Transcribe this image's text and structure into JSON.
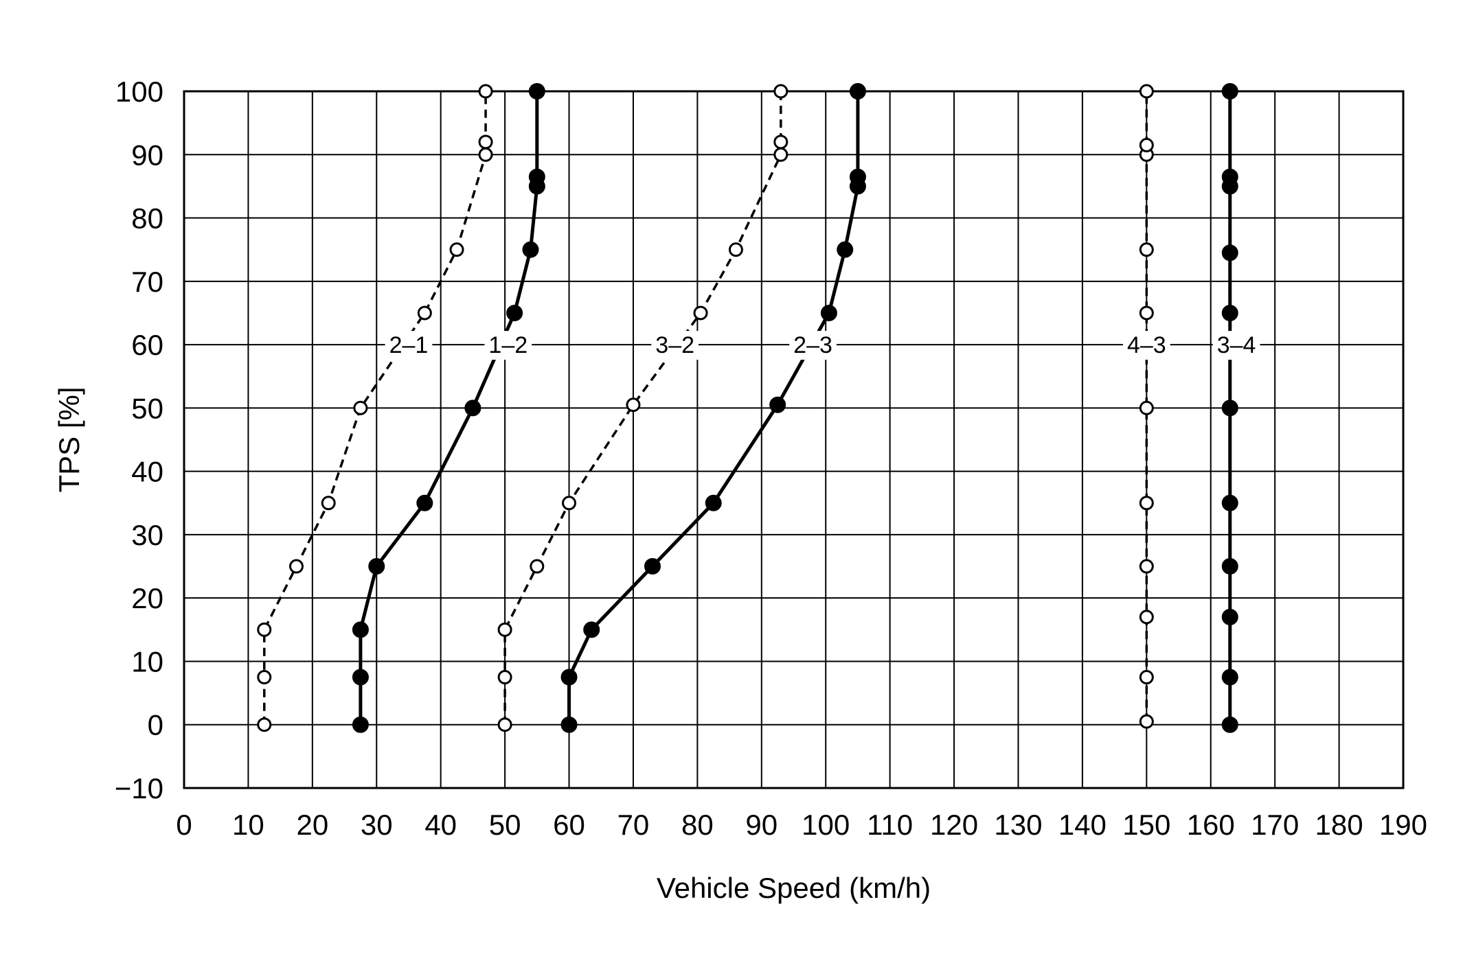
{
  "chart_data": {
    "type": "line",
    "xlabel": "Vehicle Speed (km/h)",
    "ylabel": "TPS [%]",
    "xlim": [
      0,
      190
    ],
    "ylim": [
      -10,
      100
    ],
    "xticks": [
      "0",
      "10",
      "20",
      "30",
      "40",
      "50",
      "60",
      "70",
      "80",
      "90",
      "100",
      "110",
      "120",
      "130",
      "140",
      "150",
      "160",
      "170",
      "180",
      "190"
    ],
    "yticks": [
      "−10",
      "0",
      "10",
      "20",
      "30",
      "40",
      "50",
      "60",
      "70",
      "80",
      "90",
      "100"
    ],
    "grid": true,
    "legend": "inline labels at TPS 60",
    "colors": {
      "line": "#000000",
      "grid": "#000000",
      "open_marker_fill": "#ffffff",
      "filled_marker_fill": "#000000"
    },
    "series": [
      {
        "name": "2–1",
        "style": "dashed",
        "marker": "open",
        "points": [
          [
            12.5,
            0
          ],
          [
            12.5,
            7.5
          ],
          [
            12.5,
            15
          ],
          [
            17.5,
            25
          ],
          [
            22.5,
            35
          ],
          [
            27.5,
            50
          ],
          [
            37.5,
            65
          ],
          [
            42.5,
            75
          ],
          [
            47,
            90
          ],
          [
            47,
            92
          ],
          [
            47,
            100
          ]
        ]
      },
      {
        "name": "1–2",
        "style": "solid",
        "marker": "filled",
        "points": [
          [
            27.5,
            0
          ],
          [
            27.5,
            7.5
          ],
          [
            27.5,
            15
          ],
          [
            30,
            25
          ],
          [
            37.5,
            35
          ],
          [
            45,
            50
          ],
          [
            51.5,
            65
          ],
          [
            54,
            75
          ],
          [
            55,
            85
          ],
          [
            55,
            86.5
          ],
          [
            55,
            100
          ]
        ]
      },
      {
        "name": "3–2",
        "style": "dashed",
        "marker": "open",
        "points": [
          [
            50,
            0
          ],
          [
            50,
            7.5
          ],
          [
            50,
            15
          ],
          [
            55,
            25
          ],
          [
            60,
            35
          ],
          [
            70,
            50.5
          ],
          [
            80.5,
            65
          ],
          [
            86,
            75
          ],
          [
            93,
            90
          ],
          [
            93,
            92
          ],
          [
            93,
            100
          ]
        ]
      },
      {
        "name": "2–3",
        "style": "solid",
        "marker": "filled",
        "points": [
          [
            60,
            0
          ],
          [
            60,
            7.5
          ],
          [
            63.5,
            15
          ],
          [
            73,
            25
          ],
          [
            82.5,
            35
          ],
          [
            92.5,
            50.5
          ],
          [
            100.5,
            65
          ],
          [
            103,
            75
          ],
          [
            105,
            85
          ],
          [
            105,
            86.5
          ],
          [
            105,
            100
          ]
        ]
      },
      {
        "name": "4–3",
        "style": "dashed",
        "marker": "open",
        "points": [
          [
            150,
            0.5
          ],
          [
            150,
            7.5
          ],
          [
            150,
            17
          ],
          [
            150,
            25
          ],
          [
            150,
            35
          ],
          [
            150,
            50
          ],
          [
            150,
            65
          ],
          [
            150,
            75
          ],
          [
            150,
            90
          ],
          [
            150,
            91.5
          ],
          [
            150,
            100
          ]
        ]
      },
      {
        "name": "3–4",
        "style": "solid",
        "marker": "filled",
        "points": [
          [
            163,
            0
          ],
          [
            163,
            7.5
          ],
          [
            163,
            17
          ],
          [
            163,
            25
          ],
          [
            163,
            35
          ],
          [
            163,
            50
          ],
          [
            163,
            65
          ],
          [
            163,
            74.5
          ],
          [
            163,
            85
          ],
          [
            163,
            86.5
          ],
          [
            163,
            100
          ]
        ]
      }
    ],
    "series_label_at_y": 60,
    "series_label_x": [
      35,
      50.5,
      76.5,
      98,
      150,
      164
    ]
  }
}
